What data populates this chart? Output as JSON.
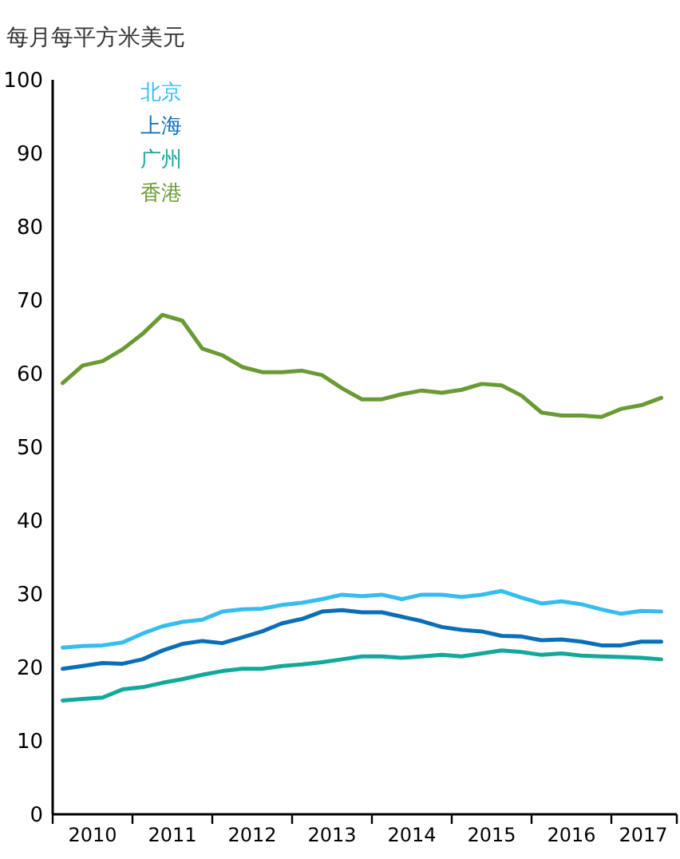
{
  "chart_data": {
    "type": "line",
    "ylabel": "每月每平方米美元",
    "x": [
      2010.125,
      2010.375,
      2010.625,
      2010.875,
      2011.125,
      2011.375,
      2011.625,
      2011.875,
      2012.125,
      2012.375,
      2012.625,
      2012.875,
      2013.125,
      2013.375,
      2013.625,
      2013.875,
      2014.125,
      2014.375,
      2014.625,
      2014.875,
      2015.125,
      2015.375,
      2015.625,
      2015.875,
      2016.125,
      2016.375,
      2016.625,
      2016.875,
      2017.125,
      2017.375,
      2017.625
    ],
    "series": [
      {
        "name": "北京",
        "color": "#35bdf0",
        "values": [
          22.7,
          22.9,
          23.0,
          23.4,
          24.6,
          25.6,
          26.2,
          26.5,
          27.6,
          27.9,
          28.0,
          28.5,
          28.8,
          29.3,
          29.9,
          29.7,
          29.9,
          29.3,
          29.9,
          29.9,
          29.6,
          29.9,
          30.4,
          29.5,
          28.7,
          29.0,
          28.6,
          27.9,
          27.3,
          27.7,
          27.6
        ]
      },
      {
        "name": "上海",
        "color": "#0a6fb8",
        "values": [
          19.8,
          20.2,
          20.6,
          20.5,
          21.1,
          22.3,
          23.2,
          23.6,
          23.3,
          24.1,
          24.9,
          26.0,
          26.6,
          27.6,
          27.8,
          27.5,
          27.5,
          26.9,
          26.3,
          25.5,
          25.1,
          24.9,
          24.3,
          24.2,
          23.7,
          23.8,
          23.5,
          23.0,
          23.0,
          23.5,
          23.5
        ]
      },
      {
        "name": "广州",
        "color": "#12a89a",
        "values": [
          15.5,
          15.7,
          15.9,
          17.0,
          17.3,
          17.9,
          18.4,
          19.0,
          19.5,
          19.8,
          19.8,
          20.2,
          20.4,
          20.7,
          21.1,
          21.5,
          21.5,
          21.3,
          21.5,
          21.7,
          21.5,
          21.9,
          22.3,
          22.1,
          21.7,
          21.9,
          21.6,
          21.5,
          21.4,
          21.3,
          21.1
        ]
      },
      {
        "name": "香港",
        "color": "#6a9a34",
        "values": [
          58.7,
          61.1,
          61.7,
          63.3,
          65.4,
          68.0,
          67.2,
          63.4,
          62.5,
          60.9,
          60.2,
          60.2,
          60.4,
          59.8,
          58.0,
          56.5,
          56.5,
          57.2,
          57.7,
          57.4,
          57.8,
          58.6,
          58.4,
          57.0,
          54.7,
          54.3,
          54.3,
          54.1,
          55.2,
          55.7,
          56.7
        ]
      }
    ],
    "xlim": [
      2010,
      2017.82
    ],
    "xticks": [
      {
        "value": 2010,
        "label": null
      },
      {
        "value": 2010.5,
        "label": "2010"
      },
      {
        "value": 2011,
        "label": null
      },
      {
        "value": 2011.5,
        "label": "2011"
      },
      {
        "value": 2012,
        "label": null
      },
      {
        "value": 2012.5,
        "label": "2012"
      },
      {
        "value": 2013,
        "label": null
      },
      {
        "value": 2013.5,
        "label": "2013"
      },
      {
        "value": 2014,
        "label": null
      },
      {
        "value": 2014.5,
        "label": "2014"
      },
      {
        "value": 2015,
        "label": null
      },
      {
        "value": 2015.5,
        "label": "2015"
      },
      {
        "value": 2016,
        "label": null
      },
      {
        "value": 2016.5,
        "label": "2016"
      },
      {
        "value": 2017,
        "label": null
      },
      {
        "value": 2017.4,
        "label": "2017"
      },
      {
        "value": 2017.82,
        "label": null
      }
    ],
    "ylim": [
      0,
      100
    ],
    "yticks": [
      0,
      10,
      20,
      30,
      40,
      50,
      60,
      70,
      80,
      90,
      100
    ],
    "legend": "top left",
    "grid": false,
    "marker": "none",
    "line_style": "solid"
  }
}
